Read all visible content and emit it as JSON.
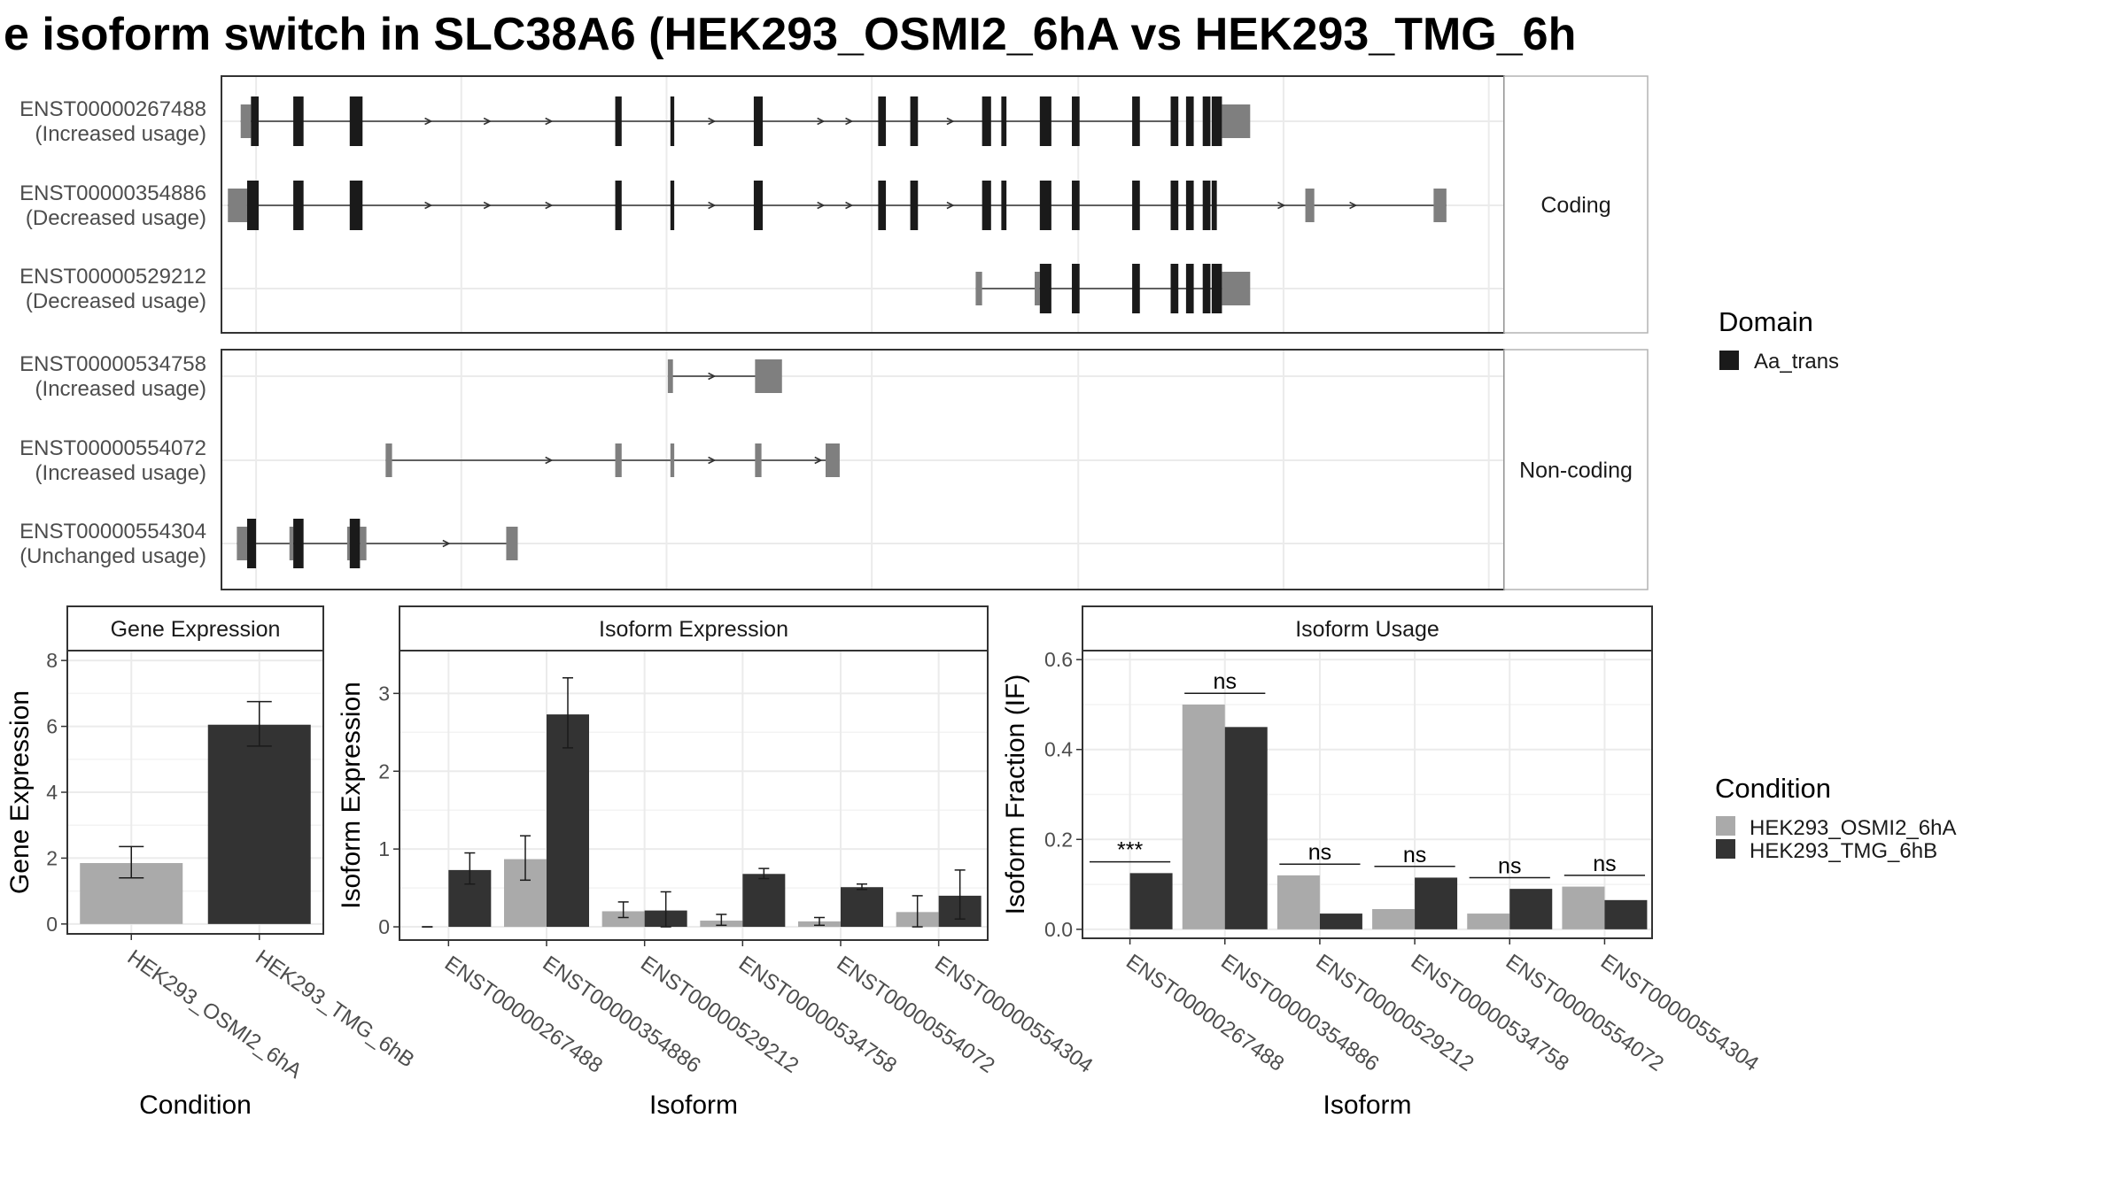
{
  "title": "e isoform switch in SLC38A6 (HEK293_OSMI2_6hA vs HEK293_TMG_6h",
  "colors": {
    "condA": "#aaaaaa",
    "condB": "#333333",
    "domain": "#1a1a1a",
    "utr": "#7f7f7f",
    "grid": "#ebebeb",
    "text": "#4d4d4d"
  },
  "legends": {
    "domain": {
      "title": "Domain",
      "items": [
        {
          "label": "Aa_trans"
        }
      ]
    },
    "condition": {
      "title": "Condition",
      "items": [
        {
          "label": "HEK293_OSMI2_6hA"
        },
        {
          "label": "HEK293_TMG_6hB"
        }
      ]
    }
  },
  "chart_data": [
    {
      "type": "gene-structure",
      "x_range": [
        0,
        100
      ],
      "panels": [
        {
          "strip": "Coding",
          "transcripts": [
            {
              "id": "ENST00000267488",
              "label": "(Increased usage)",
              "intron": [
                1.5,
                74.5
              ],
              "exons": [
                [
                  1.5,
                  2.3,
                  "utr"
                ],
                [
                  2.3,
                  2.9,
                  "domain"
                ],
                [
                  5.6,
                  6.4,
                  "domain"
                ],
                [
                  10.0,
                  11.0,
                  "domain"
                ],
                [
                  30.7,
                  31.2,
                  "domain"
                ],
                [
                  35.0,
                  35.3,
                  "domain"
                ],
                [
                  41.5,
                  42.2,
                  "domain"
                ],
                [
                  51.2,
                  51.8,
                  "domain"
                ],
                [
                  53.7,
                  54.3,
                  "domain"
                ],
                [
                  59.3,
                  60.0,
                  "domain"
                ],
                [
                  60.8,
                  61.2,
                  "domain"
                ],
                [
                  63.8,
                  64.7,
                  "domain"
                ],
                [
                  66.3,
                  66.9,
                  "domain"
                ],
                [
                  71.0,
                  71.6,
                  "domain"
                ],
                [
                  74.0,
                  74.6,
                  "domain"
                ],
                [
                  75.2,
                  75.8,
                  "domain"
                ],
                [
                  76.5,
                  77.1,
                  "domain"
                ],
                [
                  77.2,
                  78.0,
                  "domain"
                ],
                [
                  78.0,
                  80.2,
                  "utr"
                ]
              ],
              "arrows": [
                16.2,
                20.8,
                25.6,
                38.3,
                46.8,
                49.0,
                56.9
              ]
            },
            {
              "id": "ENST00000354886",
              "label": "(Decreased usage)",
              "intron": [
                0.5,
                95.5
              ],
              "exons": [
                [
                  0.5,
                  2.0,
                  "utr"
                ],
                [
                  2.0,
                  2.9,
                  "domain"
                ],
                [
                  5.6,
                  6.4,
                  "domain"
                ],
                [
                  10.0,
                  11.0,
                  "domain"
                ],
                [
                  30.7,
                  31.2,
                  "domain"
                ],
                [
                  35.0,
                  35.3,
                  "domain"
                ],
                [
                  41.5,
                  42.2,
                  "domain"
                ],
                [
                  51.2,
                  51.8,
                  "domain"
                ],
                [
                  53.7,
                  54.3,
                  "domain"
                ],
                [
                  59.3,
                  60.0,
                  "domain"
                ],
                [
                  60.8,
                  61.2,
                  "domain"
                ],
                [
                  63.8,
                  64.7,
                  "domain"
                ],
                [
                  66.3,
                  66.9,
                  "domain"
                ],
                [
                  71.0,
                  71.6,
                  "domain"
                ],
                [
                  74.0,
                  74.6,
                  "domain"
                ],
                [
                  75.2,
                  75.8,
                  "domain"
                ],
                [
                  76.5,
                  77.1,
                  "domain"
                ],
                [
                  77.2,
                  77.6,
                  "domain"
                ],
                [
                  84.5,
                  85.2,
                  "utr"
                ],
                [
                  94.5,
                  95.5,
                  "utr"
                ]
              ],
              "arrows": [
                16.2,
                20.8,
                25.6,
                38.3,
                46.8,
                49.0,
                56.9,
                82.7,
                88.3
              ]
            },
            {
              "id": "ENST00000529212",
              "label": "(Decreased usage)",
              "intron": [
                58.8,
                78.0
              ],
              "exons": [
                [
                  58.8,
                  59.3,
                  "utr"
                ],
                [
                  63.4,
                  63.8,
                  "utr"
                ],
                [
                  63.8,
                  64.7,
                  "domain"
                ],
                [
                  66.3,
                  66.9,
                  "domain"
                ],
                [
                  71.0,
                  71.6,
                  "domain"
                ],
                [
                  74.0,
                  74.6,
                  "domain"
                ],
                [
                  75.2,
                  75.8,
                  "domain"
                ],
                [
                  76.5,
                  77.1,
                  "domain"
                ],
                [
                  77.2,
                  78.0,
                  "domain"
                ],
                [
                  78.0,
                  80.2,
                  "utr"
                ]
              ],
              "arrows": []
            }
          ]
        },
        {
          "strip": "Non-coding",
          "transcripts": [
            {
              "id": "ENST00000534758",
              "label": "(Increased usage)",
              "intron": [
                34.8,
                42.8
              ],
              "exons": [
                [
                  34.8,
                  35.2,
                  "utr"
                ],
                [
                  41.6,
                  43.7,
                  "utr"
                ]
              ],
              "arrows": [
                38.3
              ]
            },
            {
              "id": "ENST00000554072",
              "label": "(Increased usage)",
              "intron": [
                12.8,
                47.8
              ],
              "exons": [
                [
                  12.8,
                  13.3,
                  "utr"
                ],
                [
                  30.7,
                  31.2,
                  "utr"
                ],
                [
                  35.0,
                  35.3,
                  "utr"
                ],
                [
                  41.6,
                  42.1,
                  "utr"
                ],
                [
                  47.1,
                  48.2,
                  "utr"
                ]
              ],
              "arrows": [
                25.6,
                38.3,
                46.6
              ]
            },
            {
              "id": "ENST00000554304",
              "label": "(Unchanged usage)",
              "intron": [
                1.2,
                22.5
              ],
              "exons": [
                [
                  1.2,
                  2.0,
                  "utr"
                ],
                [
                  2.0,
                  2.7,
                  "domain"
                ],
                [
                  5.3,
                  5.6,
                  "utr"
                ],
                [
                  5.6,
                  6.4,
                  "domain"
                ],
                [
                  9.8,
                  10.0,
                  "utr"
                ],
                [
                  10.0,
                  10.8,
                  "domain"
                ],
                [
                  10.8,
                  11.3,
                  "utr"
                ],
                [
                  22.2,
                  23.1,
                  "utr"
                ]
              ],
              "arrows": [
                17.6
              ]
            }
          ]
        }
      ]
    },
    {
      "type": "bar",
      "title": "Gene Expression",
      "xlabel": "Condition",
      "ylabel": "Gene Expression",
      "ylim": [
        -0.3,
        8.3
      ],
      "yticks": [
        0,
        2,
        4,
        6,
        8
      ],
      "categories": [
        "HEK293_OSMI2_6hA",
        "HEK293_TMG_6hB"
      ],
      "values": [
        1.85,
        6.05
      ],
      "errors": [
        [
          1.4,
          2.35
        ],
        [
          5.4,
          6.75
        ]
      ]
    },
    {
      "type": "bar",
      "title": "Isoform Expression",
      "xlabel": "Isoform",
      "ylabel": "Isoform Expression",
      "ylim": [
        -0.17,
        3.55
      ],
      "yticks": [
        0,
        1,
        2,
        3
      ],
      "categories": [
        "ENST00000267488",
        "ENST00000354886",
        "ENST00000529212",
        "ENST00000534758",
        "ENST00000554072",
        "ENST00000554304"
      ],
      "series": [
        {
          "name": "HEK293_OSMI2_6hA",
          "values": [
            0.0,
            0.87,
            0.2,
            0.08,
            0.07,
            0.19
          ],
          "errors": [
            [
              0.0,
              0.0
            ],
            [
              0.6,
              1.17
            ],
            [
              0.12,
              0.32
            ],
            [
              0.02,
              0.16
            ],
            [
              0.02,
              0.12
            ],
            [
              0.0,
              0.4
            ]
          ]
        },
        {
          "name": "HEK293_TMG_6hB",
          "values": [
            0.73,
            2.73,
            0.21,
            0.68,
            0.51,
            0.4
          ],
          "errors": [
            [
              0.55,
              0.95
            ],
            [
              2.3,
              3.2
            ],
            [
              0.0,
              0.45
            ],
            [
              0.62,
              0.75
            ],
            [
              0.48,
              0.55
            ],
            [
              0.1,
              0.73
            ]
          ]
        }
      ]
    },
    {
      "type": "bar",
      "title": "Isoform Usage",
      "xlabel": "Isoform",
      "ylabel": "Isoform Fraction (IF)",
      "ylim": [
        -0.02,
        0.62
      ],
      "yticks": [
        0.0,
        0.2,
        0.4,
        0.6
      ],
      "ytick_labels": [
        "0.0",
        "0.2",
        "0.4",
        "0.6"
      ],
      "categories": [
        "ENST00000267488",
        "ENST00000354886",
        "ENST00000529212",
        "ENST00000534758",
        "ENST00000554072",
        "ENST00000554304"
      ],
      "series": [
        {
          "name": "HEK293_OSMI2_6hA",
          "values": [
            0.0,
            0.5,
            0.12,
            0.045,
            0.035,
            0.095
          ]
        },
        {
          "name": "HEK293_TMG_6hB",
          "values": [
            0.125,
            0.45,
            0.035,
            0.115,
            0.09,
            0.065
          ]
        }
      ],
      "significance": [
        {
          "label": "***",
          "y": 0.15
        },
        {
          "label": "ns",
          "y": 0.525
        },
        {
          "label": "ns",
          "y": 0.145
        },
        {
          "label": "ns",
          "y": 0.14
        },
        {
          "label": "ns",
          "y": 0.115
        },
        {
          "label": "ns",
          "y": 0.12
        }
      ]
    }
  ]
}
